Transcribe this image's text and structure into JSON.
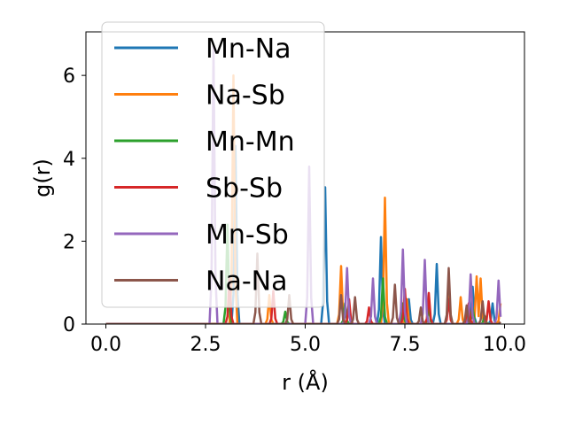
{
  "chart_data": {
    "type": "line",
    "title": "",
    "xlabel": "r (Å)",
    "ylabel": "g(r)",
    "xlim": [
      -0.5,
      10.5
    ],
    "ylim": [
      0,
      7.05
    ],
    "xticks": [
      0.0,
      2.5,
      5.0,
      7.5,
      10.0
    ],
    "xtick_labels": [
      "0.0",
      "2.5",
      "5.0",
      "7.5",
      "10.0"
    ],
    "yticks": [
      0,
      2,
      4,
      6
    ],
    "ytick_labels": [
      "0",
      "2",
      "4",
      "6"
    ],
    "grid": false,
    "legend_position": "top-left",
    "series": [
      {
        "name": "Mn-Na",
        "color": "#1f77b4",
        "peaks": [
          [
            3.25,
            4.3
          ],
          [
            5.5,
            3.3
          ],
          [
            6.9,
            2.1
          ],
          [
            7.6,
            0.6
          ],
          [
            8.3,
            1.45
          ],
          [
            9.2,
            0.9
          ],
          [
            9.7,
            0.5
          ]
        ]
      },
      {
        "name": "Na-Sb",
        "color": "#ff7f0e",
        "peaks": [
          [
            3.2,
            6.0
          ],
          [
            4.1,
            0.7
          ],
          [
            5.9,
            1.4
          ],
          [
            7.0,
            3.05
          ],
          [
            7.55,
            0.6
          ],
          [
            8.6,
            0.9
          ],
          [
            8.9,
            0.65
          ],
          [
            9.3,
            1.15
          ],
          [
            9.4,
            1.1
          ],
          [
            9.9,
            0.5
          ]
        ]
      },
      {
        "name": "Mn-Mn",
        "color": "#2ca02c",
        "peaks": [
          [
            3.05,
            2.4
          ],
          [
            4.5,
            0.3
          ],
          [
            6.0,
            0.5
          ],
          [
            6.95,
            1.1
          ],
          [
            7.45,
            0.5
          ],
          [
            8.1,
            0.4
          ],
          [
            9.2,
            0.4
          ],
          [
            9.5,
            0.2
          ]
        ]
      },
      {
        "name": "Sb-Sb",
        "color": "#d62728",
        "peaks": [
          [
            3.1,
            1.1
          ],
          [
            4.2,
            0.8
          ],
          [
            6.1,
            0.6
          ],
          [
            6.6,
            0.4
          ],
          [
            7.5,
            0.85
          ],
          [
            8.1,
            0.75
          ],
          [
            8.6,
            0.6
          ],
          [
            9.1,
            0.5
          ],
          [
            9.6,
            0.55
          ]
        ]
      },
      {
        "name": "Mn-Sb",
        "color": "#9467bd",
        "peaks": [
          [
            2.7,
            6.7
          ],
          [
            5.1,
            3.8
          ],
          [
            6.05,
            1.35
          ],
          [
            6.7,
            1.1
          ],
          [
            7.45,
            1.8
          ],
          [
            8.0,
            1.55
          ],
          [
            9.15,
            1.2
          ],
          [
            9.85,
            1.05
          ]
        ]
      },
      {
        "name": "Na-Na",
        "color": "#8c564b",
        "peaks": [
          [
            3.8,
            1.7
          ],
          [
            4.6,
            0.7
          ],
          [
            5.9,
            0.7
          ],
          [
            6.25,
            0.65
          ],
          [
            7.25,
            0.95
          ],
          [
            7.9,
            0.4
          ],
          [
            8.6,
            1.35
          ],
          [
            9.05,
            0.45
          ],
          [
            9.45,
            0.55
          ],
          [
            9.95,
            0.3
          ]
        ]
      }
    ]
  }
}
